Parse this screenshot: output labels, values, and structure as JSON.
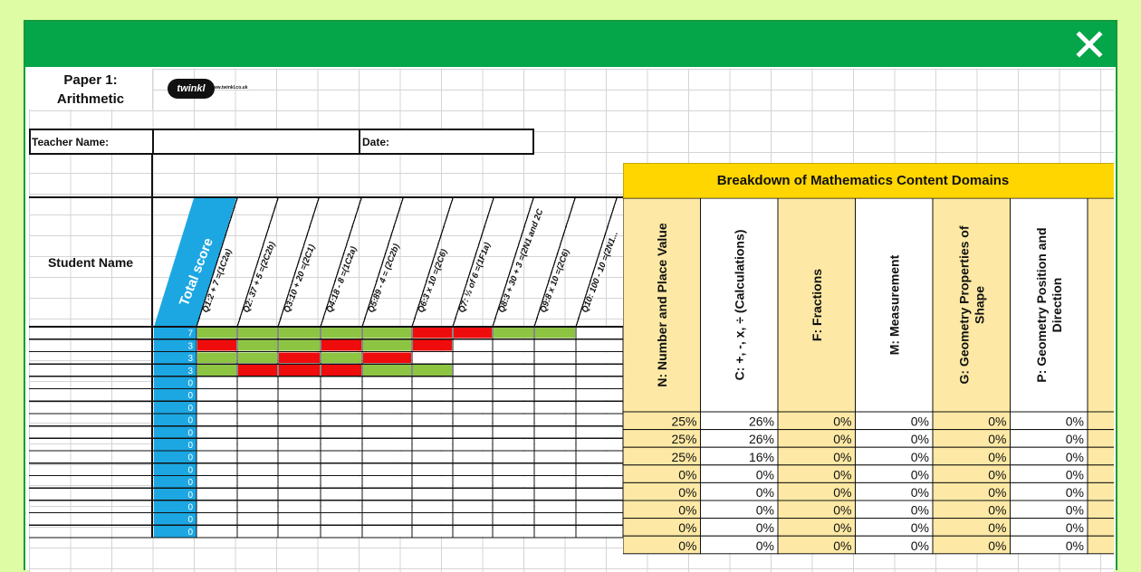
{
  "window": {
    "close_icon": "close-x-icon",
    "titlebar_color": "#05a54a"
  },
  "paper_title": {
    "line1": "Paper 1:",
    "line2": "Arithmetic"
  },
  "logo": {
    "brand": "twinkl",
    "url": "www.twinkl.co.uk"
  },
  "form": {
    "teacher_label": "Teacher Name:",
    "date_label": "Date:"
  },
  "left_table": {
    "student_header": "Student Name",
    "total_header": "Total score",
    "questions": [
      "Q1:2 + 7 =(1C2a)",
      "Q2: 37 + 5 =(2C2b)",
      "Q3:10 + 20 =(2C1)",
      "Q4:18 - 8 =(1C2a)",
      "Q5:89 - 4 = (2C2b)",
      "Q6:3 x 10 =(2C6)",
      "Q7: ½ of 6 =(1F1a)",
      "Q8:3 + 30 + 3 =(2N1 and 2C2b)",
      "Q9:8 x 10 =(2C6)",
      "Q10: 100 - 10 =(2N1..."
    ],
    "totals": [
      "7",
      "3",
      "3",
      "3",
      "0",
      "0",
      "0",
      "0",
      "0",
      "0",
      "0",
      "0",
      "0",
      "0",
      "0",
      "0",
      "0"
    ],
    "marks": [
      [
        "g",
        "g",
        "g",
        "g",
        "g",
        "r",
        "r",
        "g",
        "g",
        ""
      ],
      [
        "r",
        "g",
        "g",
        "r",
        "g",
        "r",
        "",
        "",
        "",
        ""
      ],
      [
        "g",
        "g",
        "r",
        "g",
        "r",
        "",
        "",
        "",
        "",
        ""
      ],
      [
        "g",
        "r",
        "r",
        "r",
        "g",
        "g",
        "",
        "",
        "",
        ""
      ]
    ]
  },
  "breakdown": {
    "title": "Breakdown of Mathematics Content Domains",
    "domains": [
      "N: Number and Place Value",
      "C: +, -, x, ÷ (Calculations)",
      "F: Fractions",
      "M: Measurement",
      "G: Geometry Properties of Shape",
      "P: Geometry Position and Direction"
    ],
    "rows": [
      [
        "25%",
        "26%",
        "0%",
        "0%",
        "0%",
        "0%"
      ],
      [
        "25%",
        "26%",
        "0%",
        "0%",
        "0%",
        "0%"
      ],
      [
        "25%",
        "16%",
        "0%",
        "0%",
        "0%",
        "0%"
      ],
      [
        "0%",
        "0%",
        "0%",
        "0%",
        "0%",
        "0%"
      ],
      [
        "0%",
        "0%",
        "0%",
        "0%",
        "0%",
        "0%"
      ],
      [
        "0%",
        "0%",
        "0%",
        "0%",
        "0%",
        "0%"
      ],
      [
        "0%",
        "0%",
        "0%",
        "0%",
        "0%",
        "0%"
      ],
      [
        "0%",
        "0%",
        "0%",
        "0%",
        "0%",
        "0%"
      ]
    ]
  },
  "colors": {
    "green": "#8dc543",
    "red": "#ef0c0c",
    "blue": "#1ca7e3",
    "yellow": "#ffd600",
    "cream": "#fde9a5"
  }
}
